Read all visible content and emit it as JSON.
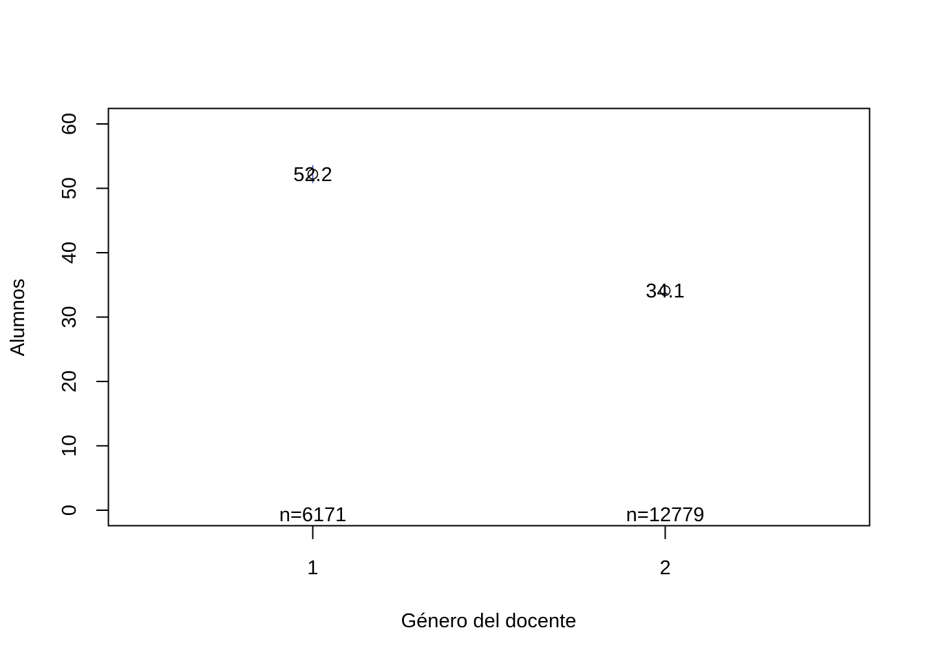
{
  "chart_data": {
    "type": "scatter",
    "title": "",
    "xlabel": "Género del docente",
    "ylabel": "Alumnos",
    "categories": [
      "1",
      "2"
    ],
    "x": [
      1,
      2
    ],
    "xlim": [
      0.42,
      2.58
    ],
    "ylim": [
      -2.4,
      62.4
    ],
    "yticks": [
      0,
      10,
      20,
      30,
      40,
      50,
      60
    ],
    "grid": false,
    "series": [
      {
        "values": [
          52.2,
          34.1
        ],
        "value_labels": [
          "52.2",
          "34.1"
        ],
        "ci_low": [
          50.8,
          33.6
        ],
        "ci_high": [
          53.6,
          34.6
        ],
        "n_labels": [
          "n=6171",
          "n=12779"
        ],
        "color": "#000000",
        "errorbar_color": "#3b4cc0"
      }
    ]
  }
}
